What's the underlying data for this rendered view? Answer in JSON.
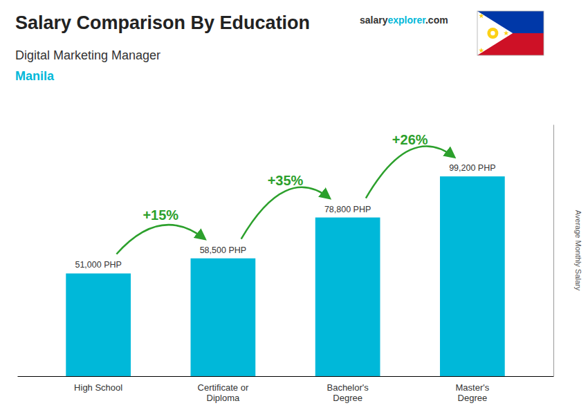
{
  "chart_data": {
    "type": "bar",
    "title": "Salary Comparison By Education",
    "subtitle": [
      "Digital Marketing Manager",
      "Manila"
    ],
    "brand": [
      "salary",
      "explorer",
      ".com"
    ],
    "categories": [
      "High School",
      "Certificate or\nDiploma",
      "Bachelor's\nDegree",
      "Master's\nDegree"
    ],
    "values": [
      51000,
      58500,
      78800,
      99200
    ],
    "value_labels": [
      "51,000 PHP",
      "58,500 PHP",
      "78,800 PHP",
      "99,200 PHP"
    ],
    "data_labels": true,
    "annotations": [
      "+15%",
      "+35%",
      "+26%"
    ],
    "ylabel": "Average Monthly Salary",
    "ylim": [
      0,
      125000
    ],
    "color": "#00b8d9",
    "grid": false,
    "tick_labels": "x"
  }
}
